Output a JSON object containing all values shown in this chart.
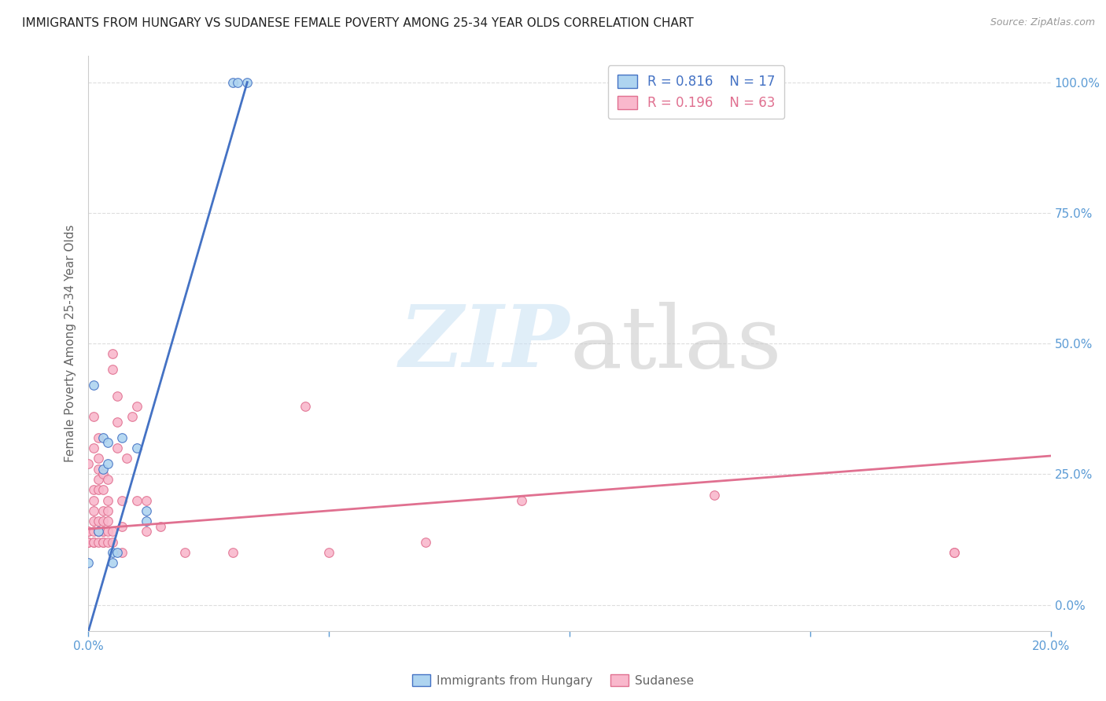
{
  "title": "IMMIGRANTS FROM HUNGARY VS SUDANESE FEMALE POVERTY AMONG 25-34 YEAR OLDS CORRELATION CHART",
  "source": "Source: ZipAtlas.com",
  "ylabel": "Female Poverty Among 25-34 Year Olds",
  "watermark_zip": "ZIP",
  "watermark_atlas": "atlas",
  "legend": {
    "hungary": {
      "R": "0.816",
      "N": "17"
    },
    "sudanese": {
      "R": "0.196",
      "N": "63"
    }
  },
  "xmin": 0.0,
  "xmax": 0.2,
  "ymin": -0.05,
  "ymax": 1.05,
  "yticks": [
    0.0,
    0.25,
    0.5,
    0.75,
    1.0
  ],
  "ytick_labels": [
    "0.0%",
    "25.0%",
    "50.0%",
    "75.0%",
    "100.0%"
  ],
  "xticks": [
    0.0,
    0.05,
    0.1,
    0.15,
    0.2
  ],
  "xtick_labels": [
    "0.0%",
    "",
    "",
    "",
    "20.0%"
  ],
  "hungary_scatter": [
    [
      0.0,
      0.08
    ],
    [
      0.001,
      0.42
    ],
    [
      0.002,
      0.14
    ],
    [
      0.003,
      0.32
    ],
    [
      0.003,
      0.26
    ],
    [
      0.004,
      0.27
    ],
    [
      0.004,
      0.31
    ],
    [
      0.005,
      0.1
    ],
    [
      0.005,
      0.08
    ],
    [
      0.006,
      0.1
    ],
    [
      0.007,
      0.32
    ],
    [
      0.01,
      0.3
    ],
    [
      0.012,
      0.16
    ],
    [
      0.012,
      0.18
    ],
    [
      0.03,
      1.0
    ],
    [
      0.031,
      1.0
    ],
    [
      0.033,
      1.0
    ]
  ],
  "sudanese_scatter": [
    [
      0.0,
      0.27
    ],
    [
      0.0,
      0.14
    ],
    [
      0.0,
      0.14
    ],
    [
      0.0,
      0.12
    ],
    [
      0.0,
      0.12
    ],
    [
      0.001,
      0.12
    ],
    [
      0.001,
      0.12
    ],
    [
      0.001,
      0.14
    ],
    [
      0.001,
      0.16
    ],
    [
      0.001,
      0.18
    ],
    [
      0.001,
      0.2
    ],
    [
      0.001,
      0.22
    ],
    [
      0.001,
      0.3
    ],
    [
      0.001,
      0.36
    ],
    [
      0.002,
      0.12
    ],
    [
      0.002,
      0.14
    ],
    [
      0.002,
      0.14
    ],
    [
      0.002,
      0.16
    ],
    [
      0.002,
      0.22
    ],
    [
      0.002,
      0.24
    ],
    [
      0.002,
      0.26
    ],
    [
      0.002,
      0.28
    ],
    [
      0.002,
      0.32
    ],
    [
      0.003,
      0.12
    ],
    [
      0.003,
      0.12
    ],
    [
      0.003,
      0.14
    ],
    [
      0.003,
      0.14
    ],
    [
      0.003,
      0.16
    ],
    [
      0.003,
      0.18
    ],
    [
      0.003,
      0.22
    ],
    [
      0.003,
      0.25
    ],
    [
      0.004,
      0.12
    ],
    [
      0.004,
      0.14
    ],
    [
      0.004,
      0.16
    ],
    [
      0.004,
      0.18
    ],
    [
      0.004,
      0.2
    ],
    [
      0.004,
      0.24
    ],
    [
      0.005,
      0.12
    ],
    [
      0.005,
      0.14
    ],
    [
      0.005,
      0.45
    ],
    [
      0.005,
      0.48
    ],
    [
      0.006,
      0.3
    ],
    [
      0.006,
      0.35
    ],
    [
      0.006,
      0.4
    ],
    [
      0.007,
      0.1
    ],
    [
      0.007,
      0.15
    ],
    [
      0.007,
      0.2
    ],
    [
      0.008,
      0.28
    ],
    [
      0.009,
      0.36
    ],
    [
      0.01,
      0.2
    ],
    [
      0.01,
      0.38
    ],
    [
      0.012,
      0.14
    ],
    [
      0.012,
      0.2
    ],
    [
      0.015,
      0.15
    ],
    [
      0.02,
      0.1
    ],
    [
      0.03,
      0.1
    ],
    [
      0.045,
      0.38
    ],
    [
      0.05,
      0.1
    ],
    [
      0.07,
      0.12
    ],
    [
      0.09,
      0.2
    ],
    [
      0.13,
      0.21
    ],
    [
      0.18,
      0.1
    ],
    [
      0.18,
      0.1
    ]
  ],
  "hungary_line_x": [
    0.0,
    0.033
  ],
  "hungary_line_y": [
    -0.05,
    1.0
  ],
  "sudanese_line_x": [
    0.0,
    0.2
  ],
  "sudanese_line_y": [
    0.145,
    0.285
  ],
  "bg_color": "#ffffff",
  "scatter_size": 70,
  "hungary_fill": "#aed4f0",
  "sudanese_fill": "#f9b8cc",
  "line_blue": "#4472c4",
  "line_pink": "#e07090",
  "grid_color": "#dddddd",
  "title_color": "#222222",
  "axis_label_color": "#666666",
  "right_tick_color": "#5b9bd5",
  "bottom_tick_color": "#5b9bd5"
}
